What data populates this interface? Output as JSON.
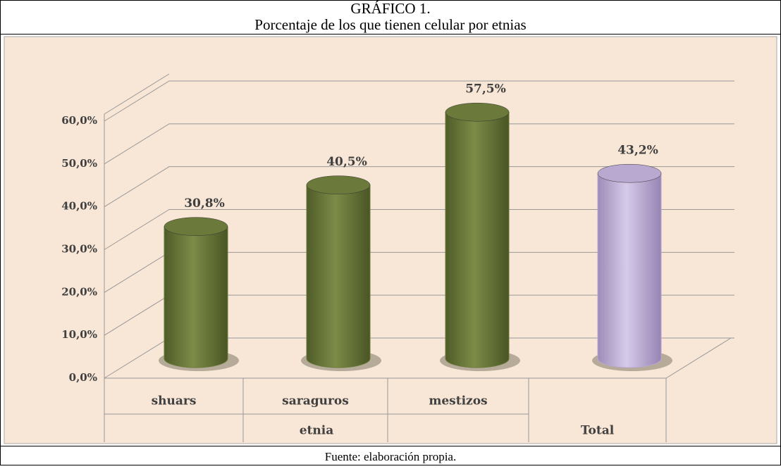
{
  "chart_data": {
    "type": "bar3d",
    "title": "GRÁFICO 1.",
    "subtitle": "Porcentaje de los que tienen celular por etnias",
    "source": "Fuente: elaboración propia.",
    "categories": [
      "shuars",
      "saraguros",
      "mestizos",
      "Total"
    ],
    "groups": [
      "etnia",
      "Total"
    ],
    "series": [
      {
        "values": [
          30.8,
          40.5,
          57.5,
          43.2
        ],
        "value_labels": [
          "30,8%",
          "40,5%",
          "57,5%",
          "43,2%"
        ],
        "colors": [
          "#6b7a3a",
          "#6b7a3a",
          "#6b7a3a",
          "#b9a8cf"
        ]
      }
    ],
    "ylim": [
      0,
      60
    ],
    "yticks": [
      {
        "value": 0,
        "label": "0,0%"
      },
      {
        "value": 10,
        "label": "10,0%"
      },
      {
        "value": 20,
        "label": "20,0%"
      },
      {
        "value": 30,
        "label": "30,0%"
      },
      {
        "value": 40,
        "label": "40,0%"
      },
      {
        "value": 50,
        "label": "50,0%"
      },
      {
        "value": 60,
        "label": "60,0%"
      }
    ],
    "grid": true
  }
}
